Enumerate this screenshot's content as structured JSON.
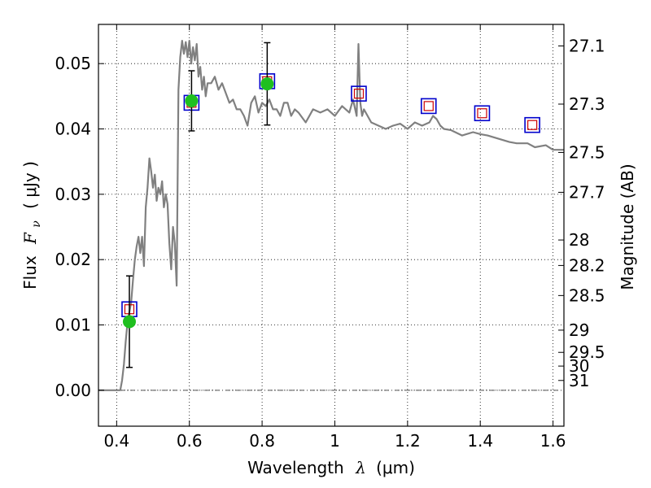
{
  "chart_data": {
    "type": "scatter",
    "title": "",
    "xlabel_text": "Wavelength",
    "xlabel_symbol": "λ",
    "xlabel_unit": "(μm)",
    "ylabel_text": "Flux",
    "ylabel_symbol": "F",
    "ylabel_subscript": "ν",
    "ylabel_unit": "( μJy )",
    "y2label": "Magnitude (AB)",
    "xlim": [
      0.35,
      1.63
    ],
    "ylim": [
      -0.0055,
      0.056
    ],
    "grid": true,
    "grid_style": "dotted",
    "x_ticks": [
      0.4,
      0.6,
      0.8,
      1.0,
      1.2,
      1.4,
      1.6
    ],
    "x_tick_labels": [
      "0.4",
      "0.6",
      "0.8",
      "1",
      "1.2",
      "1.4",
      "1.6"
    ],
    "y_ticks": [
      0.0,
      0.01,
      0.02,
      0.03,
      0.04,
      0.05
    ],
    "y_tick_labels": [
      "0.00",
      "0.01",
      "0.02",
      "0.03",
      "0.04",
      "0.05"
    ],
    "y2_ticks": [
      {
        "label": "27.1",
        "flux": 0.0527
      },
      {
        "label": "27.3",
        "flux": 0.0438
      },
      {
        "label": "27.5",
        "flux": 0.0364
      },
      {
        "label": "27.7",
        "flux": 0.0303
      },
      {
        "label": "28",
        "flux": 0.023
      },
      {
        "label": "28.2",
        "flux": 0.0191
      },
      {
        "label": "28.5",
        "flux": 0.0145
      },
      {
        "label": "29",
        "flux": 0.0092
      },
      {
        "label": "29.5",
        "flux": 0.0058
      },
      {
        "label": "30",
        "flux": 0.0037
      },
      {
        "label": "31",
        "flux": 0.0015
      }
    ],
    "zero_line": 0.0,
    "colors": {
      "model_sed": "#808080",
      "observed": "#1fbf1f",
      "errorbar": "#000000",
      "model_phot_outer": "#0000cc",
      "model_phot_inner": "#cc0000",
      "zero_line": "#555555"
    },
    "series": [
      {
        "kind": "line",
        "x": [
          0.35,
          0.38,
          0.41,
          0.415,
          0.42,
          0.425,
          0.43,
          0.435,
          0.44,
          0.445,
          0.45,
          0.455,
          0.46,
          0.465,
          0.47,
          0.475,
          0.48,
          0.485,
          0.49,
          0.495,
          0.5,
          0.505,
          0.51,
          0.515,
          0.52,
          0.525,
          0.53,
          0.535,
          0.54,
          0.545,
          0.55,
          0.555,
          0.56,
          0.565,
          0.57,
          0.575,
          0.58,
          0.585,
          0.59,
          0.595,
          0.6,
          0.605,
          0.61,
          0.615,
          0.62,
          0.625,
          0.63,
          0.635,
          0.64,
          0.645,
          0.65,
          0.66,
          0.67,
          0.68,
          0.69,
          0.7,
          0.71,
          0.72,
          0.73,
          0.74,
          0.75,
          0.76,
          0.77,
          0.78,
          0.79,
          0.8,
          0.81,
          0.82,
          0.83,
          0.84,
          0.85,
          0.86,
          0.87,
          0.88,
          0.89,
          0.9,
          0.92,
          0.94,
          0.96,
          0.98,
          1.0,
          1.02,
          1.04,
          1.05,
          1.06,
          1.065,
          1.07,
          1.075,
          1.08,
          1.1,
          1.12,
          1.14,
          1.16,
          1.18,
          1.2,
          1.22,
          1.24,
          1.26,
          1.27,
          1.28,
          1.29,
          1.3,
          1.32,
          1.35,
          1.38,
          1.4,
          1.42,
          1.45,
          1.48,
          1.5,
          1.53,
          1.55,
          1.58,
          1.6,
          1.63
        ],
        "y": [
          0.0,
          0.0,
          0.0,
          0.0015,
          0.004,
          0.0075,
          0.0105,
          0.012,
          0.0135,
          0.017,
          0.02,
          0.022,
          0.0235,
          0.021,
          0.0235,
          0.019,
          0.028,
          0.031,
          0.0355,
          0.0335,
          0.031,
          0.033,
          0.029,
          0.031,
          0.03,
          0.032,
          0.028,
          0.03,
          0.0285,
          0.0225,
          0.0185,
          0.025,
          0.0225,
          0.016,
          0.046,
          0.051,
          0.0535,
          0.0515,
          0.0533,
          0.051,
          0.0535,
          0.05,
          0.0525,
          0.0505,
          0.053,
          0.048,
          0.0495,
          0.046,
          0.048,
          0.045,
          0.047,
          0.047,
          0.048,
          0.046,
          0.047,
          0.0455,
          0.044,
          0.0445,
          0.043,
          0.043,
          0.042,
          0.0405,
          0.044,
          0.045,
          0.0425,
          0.044,
          0.0435,
          0.0445,
          0.043,
          0.043,
          0.042,
          0.044,
          0.044,
          0.042,
          0.043,
          0.0425,
          0.041,
          0.043,
          0.0425,
          0.043,
          0.042,
          0.0435,
          0.0425,
          0.0445,
          0.042,
          0.053,
          0.044,
          0.042,
          0.043,
          0.041,
          0.0405,
          0.04,
          0.0405,
          0.0408,
          0.04,
          0.041,
          0.0405,
          0.041,
          0.042,
          0.0415,
          0.0405,
          0.04,
          0.0398,
          0.039,
          0.0395,
          0.0392,
          0.039,
          0.0385,
          0.038,
          0.0378,
          0.0378,
          0.0372,
          0.0375,
          0.0368,
          0.0368
        ]
      },
      {
        "kind": "observed",
        "points": [
          {
            "x": 0.435,
            "y": 0.0105,
            "err": 0.007
          },
          {
            "x": 0.606,
            "y": 0.0443,
            "err": 0.0046
          },
          {
            "x": 0.814,
            "y": 0.0469,
            "err": 0.0063
          }
        ]
      },
      {
        "kind": "model_photometry",
        "points": [
          {
            "x": 0.435,
            "y": 0.0124
          },
          {
            "x": 0.606,
            "y": 0.044
          },
          {
            "x": 0.814,
            "y": 0.0473
          },
          {
            "x": 1.066,
            "y": 0.0454
          },
          {
            "x": 1.258,
            "y": 0.0435
          },
          {
            "x": 1.405,
            "y": 0.0424
          },
          {
            "x": 1.543,
            "y": 0.0406
          }
        ]
      }
    ]
  }
}
